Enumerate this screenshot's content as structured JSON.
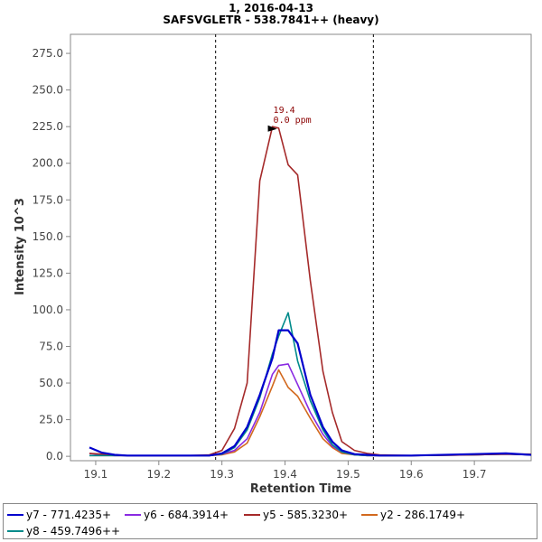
{
  "chart_data": {
    "type": "line",
    "title": "1, 2016-04-13",
    "subtitle": "SAFSVGLETR - 538.7841++ (heavy)",
    "xlabel": "Retention Time",
    "ylabel": "Intensity 10^3",
    "xlim": [
      19.06,
      19.79
    ],
    "ylim": [
      -3,
      288
    ],
    "x_ticks": [
      "19.1",
      "19.2",
      "19.3",
      "19.4",
      "19.5",
      "19.6",
      "19.7"
    ],
    "y_ticks": [
      "0.0",
      "25.0",
      "50.0",
      "75.0",
      "100.0",
      "125.0",
      "150.0",
      "175.0",
      "200.0",
      "225.0",
      "250.0",
      "275.0"
    ],
    "integration_bounds": [
      19.29,
      19.54
    ],
    "annotation": {
      "line1": "19.4",
      "line2": "0.0 ppm",
      "x": 19.39,
      "y": 224
    },
    "series": [
      {
        "name": "y5 - 585.3230+",
        "color": "#a52a2a",
        "x": [
          19.09,
          19.11,
          19.13,
          19.15,
          19.2,
          19.25,
          19.28,
          19.3,
          19.32,
          19.34,
          19.36,
          19.38,
          19.39,
          19.405,
          19.42,
          19.44,
          19.46,
          19.475,
          19.49,
          19.51,
          19.53,
          19.55,
          19.6,
          19.7,
          19.75,
          19.79
        ],
        "values": [
          2,
          1.5,
          1,
          0.5,
          0.5,
          0.5,
          1,
          4,
          19,
          50,
          188,
          225,
          224,
          199,
          192,
          120,
          58,
          30,
          10,
          4,
          2,
          1,
          0.5,
          1,
          1.5,
          1
        ]
      },
      {
        "name": "y7 - 771.4235+",
        "color": "#0000cd",
        "x": [
          19.09,
          19.11,
          19.13,
          19.15,
          19.2,
          19.25,
          19.28,
          19.3,
          19.32,
          19.34,
          19.36,
          19.38,
          19.39,
          19.405,
          19.42,
          19.44,
          19.46,
          19.475,
          19.49,
          19.51,
          19.53,
          19.55,
          19.6,
          19.7,
          19.75,
          19.79
        ],
        "values": [
          6,
          2.5,
          1,
          0.5,
          0.5,
          0.5,
          0.5,
          2,
          7,
          20,
          42,
          67,
          86,
          86,
          77,
          42,
          20,
          10,
          4,
          1.5,
          1,
          0.5,
          0.5,
          1.5,
          2,
          1
        ]
      },
      {
        "name": "y6 - 684.3914+",
        "color": "#8a2be2",
        "x": [
          19.09,
          19.11,
          19.13,
          19.15,
          19.2,
          19.25,
          19.28,
          19.3,
          19.32,
          19.34,
          19.36,
          19.38,
          19.39,
          19.405,
          19.42,
          19.44,
          19.46,
          19.475,
          19.49,
          19.51,
          19.53,
          19.55,
          19.6,
          19.7,
          19.75,
          19.79
        ],
        "values": [
          2,
          1,
          0.5,
          0.5,
          0.5,
          0.5,
          0.5,
          1.5,
          4,
          12,
          30,
          56,
          62,
          63,
          49,
          30,
          15,
          7,
          3,
          1,
          0.5,
          0.5,
          0.5,
          1,
          1.5,
          1
        ]
      },
      {
        "name": "y2 - 286.1749+",
        "color": "#d2691e",
        "x": [
          19.09,
          19.11,
          19.13,
          19.15,
          19.2,
          19.25,
          19.28,
          19.3,
          19.32,
          19.34,
          19.36,
          19.38,
          19.39,
          19.405,
          19.42,
          19.44,
          19.46,
          19.475,
          19.49,
          19.51,
          19.53,
          19.55,
          19.6,
          19.7,
          19.75,
          19.79
        ],
        "values": [
          0.5,
          0.5,
          0.5,
          0.5,
          0.5,
          0.5,
          0.5,
          1,
          3,
          9,
          27,
          48,
          59,
          47,
          41,
          26,
          12,
          6,
          2,
          1,
          0.5,
          0.5,
          0.5,
          1,
          1.5,
          1.5
        ]
      },
      {
        "name": "y8 - 459.7496++",
        "color": "#008b8b",
        "x": [
          19.09,
          19.11,
          19.13,
          19.15,
          19.2,
          19.25,
          19.28,
          19.3,
          19.32,
          19.34,
          19.36,
          19.38,
          19.39,
          19.405,
          19.42,
          19.44,
          19.46,
          19.475,
          19.49,
          19.51,
          19.53,
          19.55,
          19.6,
          19.7,
          19.75,
          19.79
        ],
        "values": [
          0.5,
          0.5,
          0.5,
          0.5,
          0.5,
          0.5,
          0.5,
          1.5,
          6,
          18,
          40,
          70,
          82,
          98,
          65,
          38,
          18,
          8,
          3,
          1,
          0.5,
          0.5,
          0.5,
          1,
          1.5,
          1
        ]
      }
    ],
    "legend_order": [
      "y7 - 771.4235+",
      "y6 - 684.3914+",
      "y5 - 585.3230+",
      "y2 - 286.1749+",
      "y8 - 459.7496++"
    ]
  }
}
